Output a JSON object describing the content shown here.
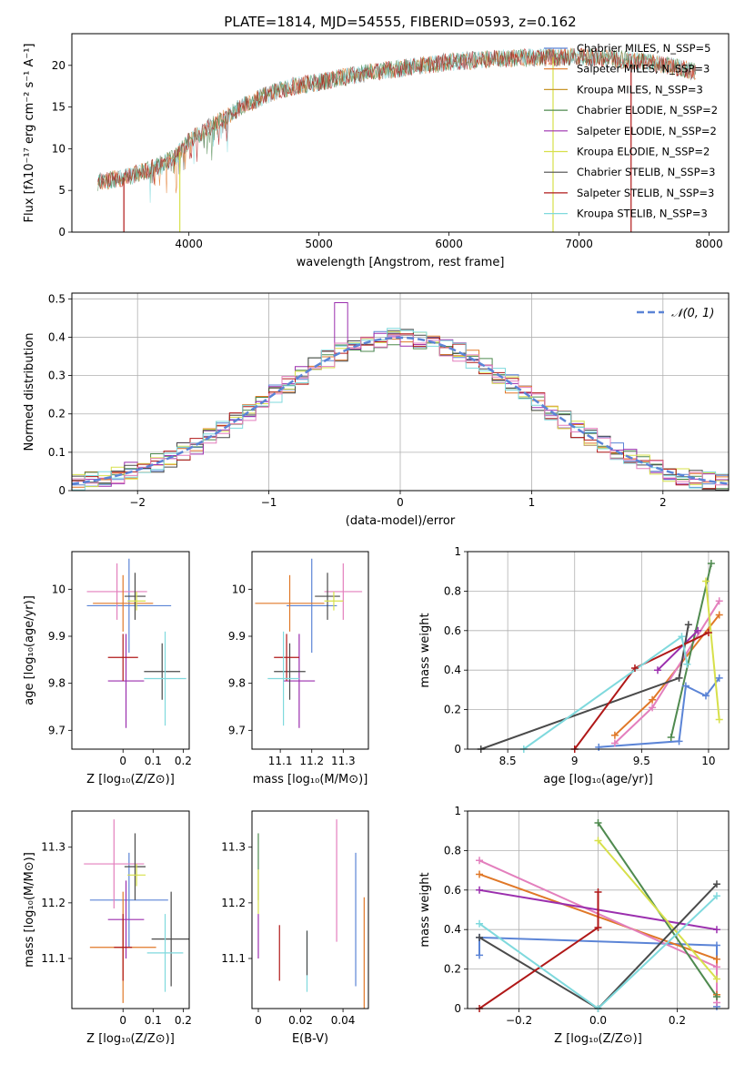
{
  "figure_title": "PLATE=1814, MJD=54555, FIBERID=0593, z=0.162",
  "colors": {
    "Chabrier MILES": "#5b84d6",
    "Salpeter MILES": "#e07828",
    "Kroupa MILES": "#c8962a",
    "Chabrier ELODIE": "#4f8a4f",
    "Salpeter ELODIE": "#9b2fae",
    "Kroupa ELODIE": "#d7e04a",
    "Chabrier STELIB": "#4a4a4a",
    "Salpeter STELIB": "#b01818",
    "Kroupa STELIB": "#7fd9dd",
    "model_ghost": "#9e9e9e",
    "pink": "#e37fbd",
    "normal": "#5b84d6"
  },
  "chart_data": [
    {
      "id": "spectrum",
      "type": "line",
      "xlabel": "wavelength [Angstrom, rest frame]",
      "ylabel": "Flux [fλ10⁻¹⁷ erg cm⁻² s⁻¹ A⁻¹]",
      "xlim": [
        3100,
        8150
      ],
      "ylim": [
        0,
        23.8
      ],
      "xticks": [
        4000,
        5000,
        6000,
        7000,
        8000
      ],
      "yticks": [
        0,
        5,
        10,
        15,
        20
      ],
      "legend_position": "right",
      "legend": [
        "Chabrier MILES, N_SSP=5",
        "Salpeter MILES, N_SSP=3",
        "Kroupa MILES, N_SSP=3",
        "Chabrier ELODIE, N_SSP=2",
        "Salpeter ELODIE, N_SSP=2",
        "Kroupa ELODIE, N_SSP=2",
        "Chabrier STELIB, N_SSP=3",
        "Salpeter STELIB, N_SSP=3",
        "Kroupa STELIB, N_SSP=3"
      ],
      "continuum_x": [
        3300,
        3500,
        3700,
        3900,
        4000,
        4200,
        4400,
        4600,
        4800,
        5000,
        5200,
        5400,
        5600,
        5800,
        6000,
        6200,
        6400,
        6600,
        6800,
        7000,
        7200,
        7400,
        7600,
        7800,
        7900
      ],
      "continuum_y": [
        6.0,
        6.5,
        7.5,
        9.0,
        11.0,
        13.0,
        15.0,
        16.5,
        17.5,
        18.0,
        18.6,
        19.2,
        19.6,
        20.0,
        20.4,
        20.6,
        20.8,
        20.9,
        21.0,
        21.0,
        20.9,
        20.6,
        20.2,
        19.6,
        19.2
      ]
    },
    {
      "id": "residuals",
      "type": "histogram",
      "xlabel": "(data-model)/error",
      "ylabel": "Normed distribution",
      "xlim": [
        -2.5,
        2.5
      ],
      "ylim": [
        0,
        0.515
      ],
      "xticks": [
        -2,
        -1,
        0,
        1,
        2
      ],
      "xticklabels": [
        "−2",
        "−1",
        "0",
        "1",
        "2"
      ],
      "yticks": [
        0.0,
        0.1,
        0.2,
        0.3,
        0.4,
        0.5
      ],
      "grid": true,
      "legend": "𝒩(0, 1)",
      "legend_position": "top-right",
      "spike": {
        "x": -0.45,
        "y": 0.49
      }
    },
    {
      "id": "age-vs-Z",
      "type": "errorbar",
      "xlabel": "Z [log₁₀(Z/Z⊙)]",
      "ylabel": "age  [log₁₀(age/yr)]",
      "xlim": [
        -0.17,
        0.22
      ],
      "ylim": [
        9.66,
        10.08
      ],
      "xticks": [
        0.0,
        0.1,
        0.2
      ],
      "yticks": [
        9.7,
        9.8,
        9.9,
        10.0
      ],
      "points": [
        {
          "c": "Chabrier MILES",
          "x": 0.02,
          "xe": 0.14,
          "y": 9.965,
          "ye": 0.1
        },
        {
          "c": "pink",
          "x": -0.02,
          "xe": 0.1,
          "y": 9.995,
          "ye": 0.06
        },
        {
          "c": "Salpeter MILES",
          "x": 0.0,
          "xe": 0.1,
          "y": 9.97,
          "ye": 0.06
        },
        {
          "c": "Chabrier STELIB",
          "x": 0.04,
          "xe": 0.035,
          "y": 9.985,
          "ye": 0.05
        },
        {
          "c": "Kroupa ELODIE",
          "x": 0.045,
          "xe": 0.03,
          "y": 9.975,
          "ye": 0.02
        },
        {
          "c": "Salpeter ELODIE",
          "x": 0.01,
          "xe": 0.06,
          "y": 9.805,
          "ye": 0.1
        },
        {
          "c": "Chabrier STELIB",
          "x": 0.13,
          "xe": 0.06,
          "y": 9.825,
          "ye": 0.06
        },
        {
          "c": "Salpeter STELIB",
          "x": 0.0,
          "xe": 0.05,
          "y": 9.855,
          "ye": 0.05
        },
        {
          "c": "Kroupa STELIB",
          "x": 0.14,
          "xe": 0.07,
          "y": 9.81,
          "ye": 0.1
        }
      ]
    },
    {
      "id": "age-vs-mass",
      "type": "errorbar",
      "xlabel": "mass [log₁₀(M/M⊙)]",
      "xlim": [
        11.01,
        11.38
      ],
      "ylim": [
        9.66,
        10.08
      ],
      "xticks": [
        11.1,
        11.2,
        11.3
      ],
      "yticks": [
        9.7,
        9.8,
        9.9,
        10.0
      ],
      "points": [
        {
          "c": "Chabrier MILES",
          "x": 11.2,
          "xe": 0.08,
          "y": 9.965,
          "ye": 0.1
        },
        {
          "c": "pink",
          "x": 11.3,
          "xe": 0.06,
          "y": 9.995,
          "ye": 0.06
        },
        {
          "c": "Salpeter MILES",
          "x": 11.13,
          "xe": 0.11,
          "y": 9.97,
          "ye": 0.06
        },
        {
          "c": "Chabrier STELIB",
          "x": 11.25,
          "xe": 0.04,
          "y": 9.985,
          "ye": 0.05
        },
        {
          "c": "Kroupa ELODIE",
          "x": 11.27,
          "xe": 0.03,
          "y": 9.975,
          "ye": 0.02
        },
        {
          "c": "Salpeter ELODIE",
          "x": 11.16,
          "xe": 0.05,
          "y": 9.805,
          "ye": 0.1
        },
        {
          "c": "Chabrier STELIB",
          "x": 11.13,
          "xe": 0.05,
          "y": 9.825,
          "ye": 0.06
        },
        {
          "c": "Salpeter STELIB",
          "x": 11.12,
          "xe": 0.04,
          "y": 9.855,
          "ye": 0.05
        },
        {
          "c": "Kroupa STELIB",
          "x": 11.11,
          "xe": 0.05,
          "y": 9.81,
          "ye": 0.1
        }
      ]
    },
    {
      "id": "weight-vs-age",
      "type": "line",
      "xlabel": "age  [log₁₀(age/yr)]",
      "ylabel": "mass weight",
      "xlim": [
        8.2,
        10.15
      ],
      "ylim": [
        0,
        1
      ],
      "xticks": [
        8.5,
        9.0,
        9.5,
        10.0
      ],
      "yticks": [
        0.0,
        0.2,
        0.4,
        0.6,
        0.8,
        1.0
      ],
      "grid": true,
      "series": [
        {
          "c": "Chabrier MILES",
          "x": [
            9.18,
            9.78,
            9.83,
            9.98,
            10.08
          ],
          "y": [
            0.01,
            0.04,
            0.32,
            0.27,
            0.36
          ]
        },
        {
          "c": "Salpeter MILES",
          "x": [
            9.3,
            9.58,
            10.08
          ],
          "y": [
            0.07,
            0.25,
            0.68
          ]
        },
        {
          "c": "pink",
          "x": [
            9.3,
            9.58,
            10.08
          ],
          "y": [
            0.03,
            0.21,
            0.75
          ]
        },
        {
          "c": "Chabrier ELODIE",
          "x": [
            9.72,
            10.02
          ],
          "y": [
            0.06,
            0.94
          ]
        },
        {
          "c": "Salpeter ELODIE",
          "x": [
            9.62,
            9.92
          ],
          "y": [
            0.4,
            0.6
          ]
        },
        {
          "c": "Kroupa ELODIE",
          "x": [
            9.98,
            10.08
          ],
          "y": [
            0.85,
            0.15
          ]
        },
        {
          "c": "Chabrier STELIB",
          "x": [
            8.3,
            9.78,
            9.85
          ],
          "y": [
            0.0,
            0.36,
            0.63
          ]
        },
        {
          "c": "Salpeter STELIB",
          "x": [
            9.0,
            9.45,
            10.0
          ],
          "y": [
            0.0,
            0.41,
            0.59
          ]
        },
        {
          "c": "Kroupa STELIB",
          "x": [
            8.62,
            9.8,
            9.84
          ],
          "y": [
            0.0,
            0.57,
            0.43
          ]
        }
      ]
    },
    {
      "id": "mass-vs-Z",
      "type": "errorbar",
      "xlabel": "Z [log₁₀(Z/Z⊙)]",
      "ylabel": "mass [log₁₀(M/M⊙)]",
      "xlim": [
        -0.17,
        0.22
      ],
      "ylim": [
        11.01,
        11.365
      ],
      "xticks": [
        0.0,
        0.1,
        0.2
      ],
      "yticks": [
        11.1,
        11.2,
        11.3
      ],
      "points": [
        {
          "c": "Chabrier MILES",
          "x": 0.02,
          "xe": 0.13,
          "y": 11.205,
          "ye": 0.085
        },
        {
          "c": "pink",
          "x": -0.03,
          "xe": 0.1,
          "y": 11.27,
          "ye": 0.08
        },
        {
          "c": "Salpeter MILES",
          "x": 0.0,
          "xe": 0.11,
          "y": 11.12,
          "ye": 0.1
        },
        {
          "c": "Chabrier STELIB",
          "x": 0.04,
          "xe": 0.035,
          "y": 11.265,
          "ye": 0.06
        },
        {
          "c": "Kroupa ELODIE",
          "x": 0.045,
          "xe": 0.03,
          "y": 11.25,
          "ye": 0.02
        },
        {
          "c": "Salpeter ELODIE",
          "x": 0.01,
          "xe": 0.06,
          "y": 11.17,
          "ye": 0.07
        },
        {
          "c": "Chabrier STELIB",
          "x": 0.16,
          "xe": 0.065,
          "y": 11.135,
          "ye": 0.085
        },
        {
          "c": "Salpeter STELIB",
          "x": 0.0,
          "xe": 0.03,
          "y": 11.12,
          "ye": 0.06
        },
        {
          "c": "Kroupa STELIB",
          "x": 0.14,
          "xe": 0.06,
          "y": 11.11,
          "ye": 0.07
        }
      ]
    },
    {
      "id": "mass-vs-EBV",
      "type": "errorbar",
      "xlabel": "E(B-V)",
      "xlim": [
        -0.003,
        0.052
      ],
      "ylim": [
        11.01,
        11.365
      ],
      "xticks": [
        0.0,
        0.02,
        0.04
      ],
      "yticks": [
        11.1,
        11.2,
        11.3
      ],
      "points": [
        {
          "c": "Chabrier ELODIE",
          "x": 0.0,
          "xe": 0,
          "y": 11.265,
          "ye": 0.06
        },
        {
          "c": "Kroupa ELODIE",
          "x": 0.0,
          "xe": 0,
          "y": 11.22,
          "ye": 0.04
        },
        {
          "c": "Salpeter ELODIE",
          "x": 0.0,
          "xe": 0,
          "y": 11.14,
          "ye": 0.04
        },
        {
          "c": "Salpeter STELIB",
          "x": 0.01,
          "xe": 0,
          "y": 11.11,
          "ye": 0.05
        },
        {
          "c": "Kroupa STELIB",
          "x": 0.023,
          "xe": 0,
          "y": 11.095,
          "ye": 0.055
        },
        {
          "c": "Chabrier STELIB",
          "x": 0.023,
          "xe": 0,
          "y": 11.11,
          "ye": 0.04
        },
        {
          "c": "pink",
          "x": 0.037,
          "xe": 0,
          "y": 11.24,
          "ye": 0.11
        },
        {
          "c": "Chabrier MILES",
          "x": 0.046,
          "xe": 0,
          "y": 11.17,
          "ye": 0.12
        },
        {
          "c": "Salpeter MILES",
          "x": 0.05,
          "xe": 0,
          "y": 11.07,
          "ye": 0.14
        }
      ]
    },
    {
      "id": "weight-vs-Z",
      "type": "line",
      "xlabel": "Z [log₁₀(Z/Z⊙)]",
      "ylabel": "mass weight",
      "xlim": [
        -0.33,
        0.33
      ],
      "ylim": [
        0,
        1
      ],
      "xticks": [
        -0.2,
        0.0,
        0.2
      ],
      "xticklabels": [
        "−0.2",
        "0.0",
        "0.2"
      ],
      "yticks": [
        0.0,
        0.2,
        0.4,
        0.6,
        0.8,
        1.0
      ],
      "grid": true,
      "series": [
        {
          "c": "Chabrier MILES",
          "x": [
            -0.3,
            -0.3,
            0.3,
            0.3
          ],
          "y": [
            0.27,
            0.36,
            0.32,
            0.01
          ]
        },
        {
          "c": "Salpeter MILES",
          "x": [
            -0.3,
            0.3,
            0.3
          ],
          "y": [
            0.68,
            0.25,
            0.07
          ]
        },
        {
          "c": "pink",
          "x": [
            -0.3,
            0.3,
            0.3
          ],
          "y": [
            0.75,
            0.21,
            0.03
          ]
        },
        {
          "c": "Chabrier ELODIE",
          "x": [
            0.0,
            0.3
          ],
          "y": [
            0.94,
            0.06
          ]
        },
        {
          "c": "Salpeter ELODIE",
          "x": [
            -0.3,
            0.3
          ],
          "y": [
            0.6,
            0.4
          ]
        },
        {
          "c": "Kroupa ELODIE",
          "x": [
            0.0,
            0.3
          ],
          "y": [
            0.85,
            0.15
          ]
        },
        {
          "c": "Chabrier STELIB",
          "x": [
            -0.3,
            0.0,
            0.3
          ],
          "y": [
            0.36,
            0.0,
            0.63
          ]
        },
        {
          "c": "Salpeter STELIB",
          "x": [
            -0.3,
            0.0,
            0.0
          ],
          "y": [
            0.0,
            0.41,
            0.59
          ]
        },
        {
          "c": "Kroupa STELIB",
          "x": [
            -0.3,
            0.0,
            0.3
          ],
          "y": [
            0.43,
            0.0,
            0.57
          ]
        }
      ]
    }
  ]
}
